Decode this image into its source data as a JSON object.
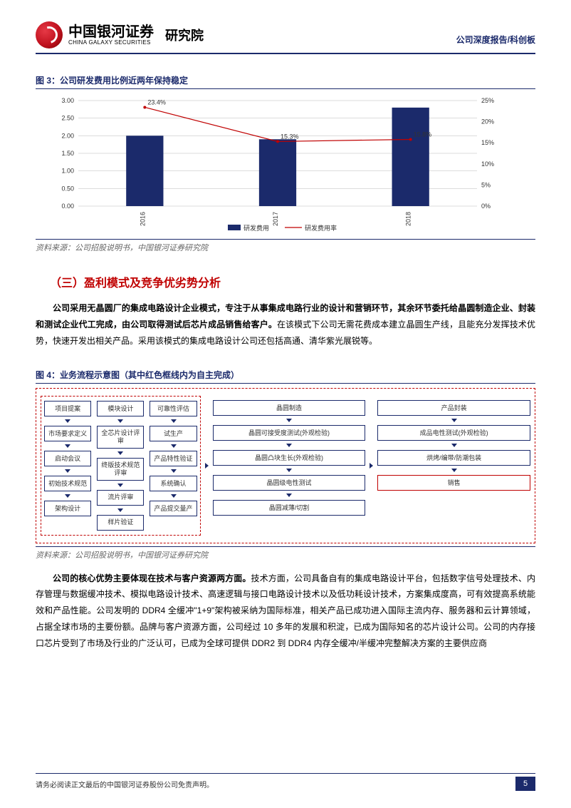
{
  "header": {
    "company_cn": "中国银河证券",
    "company_en": "CHINA GALAXY SECURITIES",
    "dept": "研究院",
    "right_text": "公司深度报告/科创板"
  },
  "fig3": {
    "title": "图 3：公司研发费用比例近两年保持稳定",
    "source": "资料来源：公司招股说明书，中国银河证券研究院",
    "chart": {
      "type": "combo-bar-line",
      "categories": [
        "2016",
        "2017",
        "2018"
      ],
      "bar_values": [
        2.0,
        1.9,
        2.8
      ],
      "line_values_pct": [
        23.4,
        15.3,
        15.8
      ],
      "line_labels": [
        "23.4%",
        "15.3%",
        "15.8%"
      ],
      "y_left_max": 3.0,
      "y_left_step": 0.5,
      "y_left_ticks": [
        "0.00",
        "0.50",
        "1.00",
        "1.50",
        "2.00",
        "2.50",
        "3.00"
      ],
      "y_right_max": 25,
      "y_right_step": 5,
      "y_right_ticks": [
        "0%",
        "5%",
        "10%",
        "15%",
        "20%",
        "25%"
      ],
      "bar_color": "#1b2a6b",
      "line_color": "#c00000",
      "grid_color": "#b8b8b8",
      "background": "#ffffff",
      "legend_bar": "研发费用",
      "legend_line": "研发费用率",
      "tick_fontsize": 9,
      "label_fontsize": 9
    }
  },
  "section3": {
    "heading": "（三）盈利模式及竞争优劣势分析",
    "p1_bold": "公司采用无晶圆厂的集成电路设计企业模式，专注于从事集成电路行业的设计和营销环节，其余环节委托给晶圆制造企业、封装和测试企业代工完成，由公司取得测试后芯片成品销售给客户。",
    "p1_rest": "在该模式下公司无需花费成本建立晶圆生产线，且能充分发挥技术优势，快速开发出相关产品。采用该模式的集成电路设计公司还包括高通、清华紫光展锐等。"
  },
  "fig4": {
    "title": "图 4：业务流程示意图（其中红色框线内为自主完成）",
    "source": "资料来源：公司招股说明书，中国银河证券研究院",
    "flowchart": {
      "groups": [
        {
          "type": "red-box",
          "columns": [
            [
              "项目提案",
              "市场要求定义",
              "启动会议",
              "初始技术规范",
              "架构设计"
            ],
            [
              "模块设计",
              "全芯片设计评审",
              "终版技术规范评审",
              "流片评审",
              "样片验证"
            ],
            [
              "可靠性评估",
              "试生产",
              "产品特性验证",
              "系统确认",
              "产品提交量产"
            ]
          ]
        },
        {
          "type": "plain",
          "columns": [
            [
              "晶圆制造",
              "晶圆可接受度测试(外观检验)",
              "晶圆凸块生长(外观检验)",
              "晶圆级电性测试",
              "晶圆减薄/切割"
            ]
          ]
        },
        {
          "type": "plain-with-red-end",
          "columns": [
            [
              "产品封装",
              "成品电性测试(外观检验)",
              "烘烤/编带/防潮包装",
              "销售"
            ]
          ]
        }
      ],
      "node_border": "#1b2a6b",
      "red_border": "#c00000",
      "node_fontsize": 9
    }
  },
  "para2": {
    "lead_bold": "公司的核心优势主要体现在技术与客户资源两方面。",
    "rest": "技术方面，公司具备自有的集成电路设计平台，包括数字信号处理技术、内存管理与数据缓冲技术、模拟电路设计技术、高速逻辑与接口电路设计技术以及低功耗设计技术，方案集成度高，可有效提高系统能效和产品性能。公司发明的 DDR4 全缓冲\"1+9\"架构被采纳为国际标准，相关产品已成功进入国际主流内存、服务器和云计算领域，占据全球市场的主要份额。品牌与客户资源方面，公司经过 10 多年的发展和积淀，已成为国际知名的芯片设计公司。公司的内存接口芯片受到了市场及行业的广泛认可，已成为全球可提供 DDR2 到 DDR4 内存全缓冲/半缓冲完整解决方案的主要供应商"
  },
  "footer": {
    "text": "请务必阅读正文最后的中国银河证券股份公司免责声明。",
    "page": "5"
  }
}
